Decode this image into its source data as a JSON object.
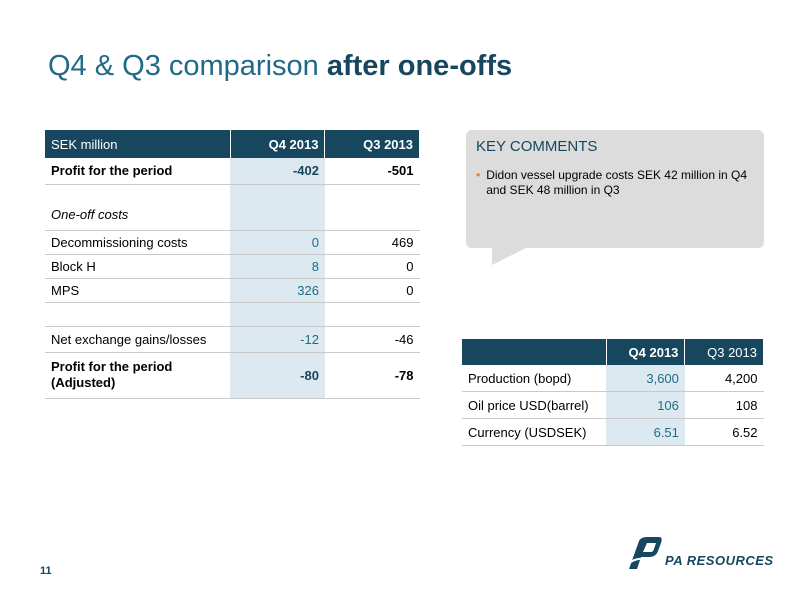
{
  "title": {
    "normal": "Q4 & Q3 comparison ",
    "bold": "after one-offs"
  },
  "main_table": {
    "headers": [
      "SEK million",
      "Q4 2013",
      "Q3 2013"
    ],
    "rows": [
      {
        "label": "Profit for the period",
        "q4": "-402",
        "q3": "-501"
      },
      {
        "label": "One-off costs",
        "q4": "",
        "q3": ""
      },
      {
        "label": "Decommissioning costs",
        "q4": "0",
        "q3": "469"
      },
      {
        "label": "Block H",
        "q4": "8",
        "q3": "0"
      },
      {
        "label": "MPS",
        "q4": "326",
        "q3": "0"
      },
      {
        "label": "",
        "q4": "",
        "q3": ""
      },
      {
        "label": "Net exchange gains/losses",
        "q4": "-12",
        "q3": "-46"
      },
      {
        "label": "Profit for the period (Adjusted)",
        "q4": "-80",
        "q3": "-78"
      }
    ]
  },
  "key_comments": {
    "title": "KEY COMMENTS",
    "bullets": [
      "Didon vessel upgrade costs SEK 42 million in Q4 and SEK 48 million in Q3"
    ]
  },
  "secondary_table": {
    "headers": [
      "",
      "Q4 2013",
      "Q3 2013"
    ],
    "rows": [
      {
        "label": "Production (bopd)",
        "q4": "3,600",
        "q3": "4,200"
      },
      {
        "label": "Oil price USD(barrel)",
        "q4": "106",
        "q3": "108"
      },
      {
        "label": "Currency (USDSEK)",
        "q4": "6.51",
        "q3": "6.52"
      }
    ]
  },
  "page_number": "11",
  "logo_text": "PA RESOURCES",
  "colors": {
    "brand_dark": "#17475f",
    "brand_mid": "#1f6b87",
    "accent_bullet": "#e07a2a"
  }
}
